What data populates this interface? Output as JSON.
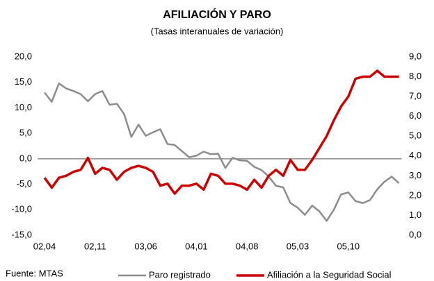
{
  "chart_data": {
    "type": "line",
    "title": "AFILIACIÓN Y PARO",
    "subtitle": "(Tasas interanuales de variación)",
    "source": "Fuente: MTAS",
    "categories": [
      "02,04",
      null,
      null,
      null,
      null,
      null,
      null,
      "02,11",
      null,
      null,
      null,
      null,
      null,
      null,
      "03,06",
      null,
      null,
      null,
      null,
      null,
      null,
      "04,01",
      null,
      null,
      null,
      null,
      null,
      null,
      "04,08",
      null,
      null,
      null,
      null,
      null,
      null,
      "05,03",
      null,
      null,
      null,
      null,
      null,
      null,
      "05,10",
      null,
      null,
      null,
      null,
      null,
      null,
      null
    ],
    "series": [
      {
        "name": "Paro registrado",
        "color": "#8c8c8c",
        "axis": "y",
        "values": [
          13.0,
          11.2,
          14.8,
          13.8,
          13.3,
          12.7,
          11.3,
          12.7,
          13.3,
          10.6,
          10.8,
          8.8,
          4.3,
          6.7,
          4.5,
          5.2,
          5.8,
          2.9,
          2.7,
          1.5,
          0.3,
          0.6,
          1.4,
          0.9,
          1.0,
          -1.8,
          0.2,
          -0.3,
          -0.4,
          -1.6,
          -2.2,
          -3.5,
          -5.3,
          -5.6,
          -8.7,
          -9.6,
          -11.0,
          -9.2,
          -10.3,
          -12.2,
          -10.0,
          -7.0,
          -6.6,
          -8.3,
          -8.7,
          -8.1,
          -6.0,
          -4.5,
          -3.5,
          -4.8
        ]
      },
      {
        "name": "Afiliación a la Seguridad Social",
        "color": "#cc0000",
        "axis": "y2",
        "values": [
          2.9,
          2.4,
          2.9,
          3.0,
          3.2,
          3.3,
          3.9,
          3.1,
          3.4,
          3.3,
          2.8,
          3.2,
          3.4,
          3.5,
          3.4,
          3.2,
          2.5,
          2.6,
          2.1,
          2.5,
          2.5,
          2.6,
          2.3,
          3.1,
          3.0,
          2.6,
          2.6,
          2.5,
          2.3,
          2.8,
          2.4,
          3.0,
          3.3,
          3.0,
          3.8,
          3.3,
          3.3,
          3.8,
          4.4,
          5.0,
          5.8,
          6.5,
          7.0,
          7.9,
          8.0,
          8.0,
          8.3,
          8.0,
          8.0,
          8.0
        ]
      }
    ],
    "ylim": [
      -15,
      20
    ],
    "yticks": [
      {
        "value": -15,
        "label": "-15,0"
      },
      {
        "value": -10,
        "label": "-10,0"
      },
      {
        "value": -5,
        "label": "-5,0"
      },
      {
        "value": 0,
        "label": "0,0"
      },
      {
        "value": 5,
        "label": "5,0"
      },
      {
        "value": 10,
        "label": "10,0"
      },
      {
        "value": 15,
        "label": "15,0"
      },
      {
        "value": 20,
        "label": "20,0"
      }
    ],
    "y2lim": [
      0,
      9
    ],
    "y2ticks": [
      {
        "value": 0,
        "label": "0,0"
      },
      {
        "value": 1,
        "label": "1,0"
      },
      {
        "value": 2,
        "label": "2,0"
      },
      {
        "value": 3,
        "label": "3,0"
      },
      {
        "value": 4,
        "label": "4,0"
      },
      {
        "value": 5,
        "label": "5,0"
      },
      {
        "value": 6,
        "label": "6,0"
      },
      {
        "value": 7,
        "label": "7,0"
      },
      {
        "value": 8,
        "label": "8,0"
      },
      {
        "value": 9,
        "label": "9,0"
      }
    ],
    "legend": "bottom"
  }
}
